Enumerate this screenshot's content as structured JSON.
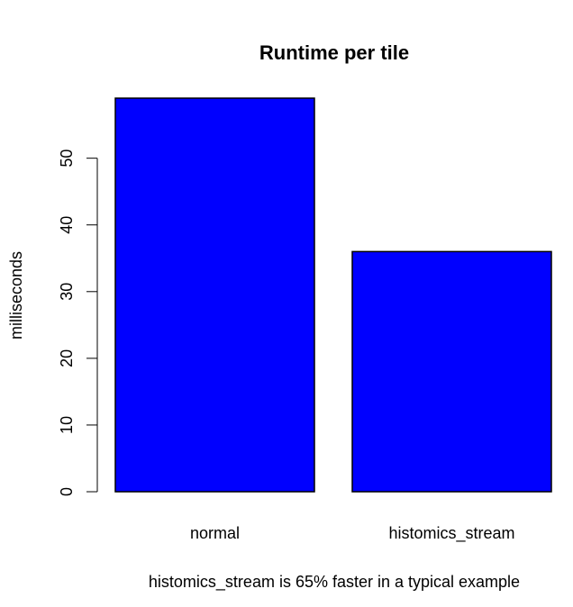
{
  "chart_data": {
    "type": "bar",
    "title": "Runtime per tile",
    "xlabel": "histomics_stream is 65% faster in a typical example",
    "ylabel": "milliseconds",
    "categories": [
      "normal",
      "histomics_stream"
    ],
    "values": [
      59,
      36
    ],
    "ylim": [
      0,
      59
    ],
    "yticks": [
      0,
      10,
      20,
      30,
      40,
      50
    ],
    "bar_color": "#0000ff",
    "grid": false,
    "legend": "none"
  }
}
